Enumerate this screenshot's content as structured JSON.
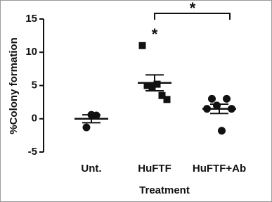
{
  "chart_data": {
    "type": "dotplot",
    "y_label": "%Colony formation",
    "x_label": "Treatment",
    "categories": [
      "Unt.",
      "HuFTF",
      "HuFTF+Ab"
    ],
    "groups": [
      {
        "marker": "circle",
        "values": [
          -1.3,
          0.6,
          0.5
        ],
        "mean": 0.0,
        "sem": 0.6
      },
      {
        "marker": "square",
        "values": [
          11.0,
          5.0,
          4.8,
          5.2,
          3.5,
          2.9
        ],
        "mean": 5.4,
        "sem": 1.2
      },
      {
        "marker": "circle",
        "values": [
          1.5,
          3.0,
          2.0,
          -1.8,
          3.0,
          1.5
        ],
        "mean": 1.5,
        "sem": 0.7
      }
    ],
    "color": "#111111",
    "ylim": [
      -5,
      15
    ],
    "yticks": [
      -5,
      0,
      5,
      10,
      15
    ],
    "annotations": [
      "*",
      "*"
    ]
  }
}
